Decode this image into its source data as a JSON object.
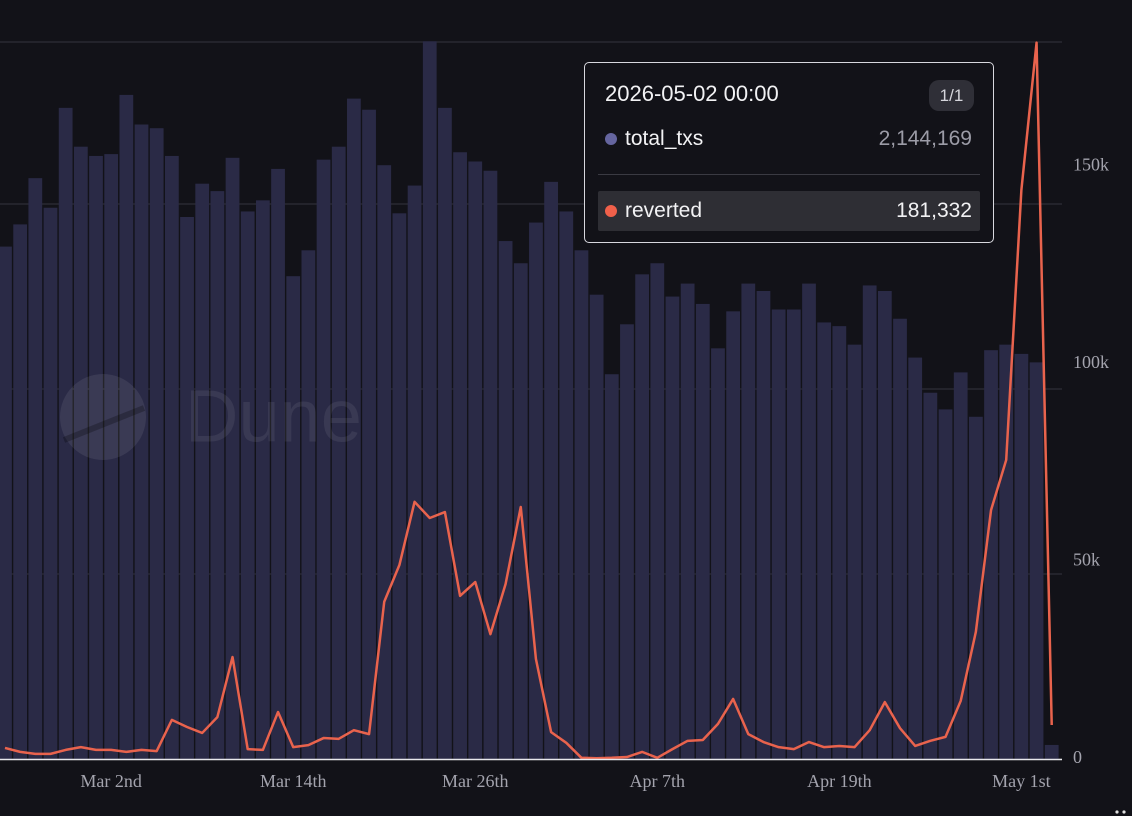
{
  "chart_data": {
    "type": "bar",
    "watermark": "Dune",
    "categories": [
      null,
      null,
      null,
      null,
      null,
      null,
      null,
      "Mar 2nd",
      null,
      null,
      null,
      null,
      null,
      null,
      null,
      null,
      null,
      null,
      null,
      "Mar 14th",
      null,
      null,
      null,
      null,
      null,
      null,
      null,
      null,
      null,
      null,
      null,
      "Mar 26th",
      null,
      null,
      null,
      null,
      null,
      null,
      null,
      null,
      null,
      null,
      null,
      "Apr 7th",
      null,
      null,
      null,
      null,
      null,
      null,
      null,
      null,
      null,
      null,
      null,
      "Apr 19th",
      null,
      null,
      null,
      null,
      null,
      null,
      null,
      null,
      null,
      null,
      null,
      "May 1st",
      null,
      null
    ],
    "ylim": [
      0,
      3876000
    ],
    "yticks": [
      0,
      1000000,
      2000000,
      3000000
    ],
    "y2lim": [
      0,
      181500
    ],
    "y2ticks": [
      0,
      {
        "value": 50000,
        "label": "50k"
      },
      {
        "value": 100000,
        "label": "100k"
      },
      {
        "value": 150000,
        "label": "150k"
      }
    ],
    "grid": true,
    "series": [
      {
        "name": "total_txs",
        "type": "bar",
        "color": "#2a2a46",
        "values": [
          2770000,
          2890000,
          3140000,
          2980000,
          3520000,
          3310000,
          3260000,
          3270000,
          3590000,
          3430000,
          3410000,
          3260000,
          2930000,
          3110000,
          3070000,
          3250000,
          2960000,
          3020000,
          3190000,
          2610000,
          2750000,
          3240000,
          3310000,
          3570000,
          3510000,
          3210000,
          2950000,
          3100000,
          3880000,
          3520000,
          3280000,
          3230000,
          3180000,
          2800000,
          2680000,
          2900000,
          3120000,
          2960000,
          2750000,
          2510000,
          2080000,
          2350000,
          2620000,
          2680000,
          2500000,
          2570000,
          2460000,
          2220000,
          2420000,
          2570000,
          2530000,
          2430000,
          2430000,
          2570000,
          2360000,
          2340000,
          2240000,
          2560000,
          2530000,
          2380000,
          2170000,
          1980000,
          1890000,
          2090000,
          1850000,
          2210000,
          2240000,
          2190000,
          2144169,
          76000
        ]
      },
      {
        "name": "reverted",
        "type": "line",
        "axis": "y2",
        "color": "#e9634d",
        "values": [
          2800,
          1800,
          1300,
          1300,
          2300,
          3000,
          2300,
          2300,
          1800,
          2300,
          2000,
          9900,
          8100,
          6600,
          10600,
          25800,
          2500,
          2300,
          11900,
          3000,
          3500,
          5300,
          5100,
          7300,
          6300,
          39800,
          49100,
          65100,
          61000,
          62500,
          41300,
          44800,
          31600,
          44300,
          63800,
          25300,
          6800,
          4100,
          300,
          200,
          300,
          500,
          1800,
          300,
          2500,
          4600,
          4800,
          8900,
          15200,
          6300,
          4300,
          3000,
          2500,
          4300,
          3000,
          3300,
          3000,
          7300,
          14400,
          7800,
          3300,
          4600,
          5600,
          14700,
          32200,
          63000,
          75700,
          144000,
          181332,
          8600
        ]
      }
    ],
    "tooltip": {
      "title": "2026-05-02 00:00",
      "page": "1/1",
      "value_labels": [
        "2,144,169",
        "181,332"
      ]
    }
  }
}
